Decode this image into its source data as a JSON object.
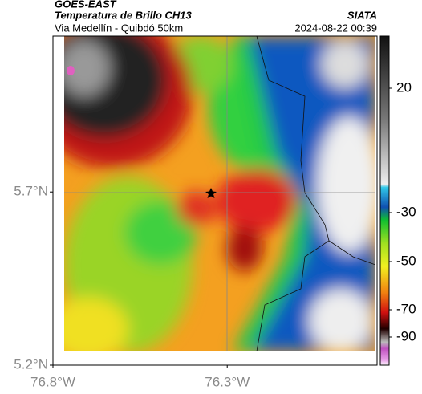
{
  "header": {
    "satellite": "GOES-EAST",
    "product": "Temperatura de Brillo CH13",
    "location": "Via Medellín - Quibdó 50km",
    "agency": "SIATA",
    "datetime": "2024-08-22 00:39"
  },
  "map": {
    "xlim": [
      -76.8,
      -75.87
    ],
    "ylim": [
      5.2,
      6.15
    ],
    "xticks": [
      {
        "value": -76.8,
        "label": "76.8°W"
      },
      {
        "value": -76.3,
        "label": "76.3°W"
      }
    ],
    "yticks": [
      {
        "value": 5.7,
        "label": "5.7°N"
      },
      {
        "value": 5.2,
        "label": "5.2°N"
      }
    ]
  },
  "colorbar": {
    "ticks": [
      20,
      -30,
      -50,
      -70,
      -90
    ]
  }
}
